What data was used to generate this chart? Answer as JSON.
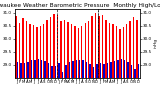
{
  "title": "Milwaukee Weather Barometric Pressure  Monthly High/Low",
  "ylabel_right": "inHg",
  "highs": [
    30.87,
    30.6,
    30.78,
    30.7,
    30.55,
    30.52,
    30.45,
    30.5,
    30.58,
    30.72,
    30.82,
    30.95,
    30.9,
    30.7,
    30.72,
    30.65,
    30.58,
    30.48,
    30.42,
    30.48,
    30.6,
    30.68,
    30.88,
    30.98,
    30.88,
    30.92,
    30.72,
    30.62,
    30.55,
    30.5,
    30.38,
    30.45,
    30.58,
    30.7,
    30.85,
    30.72
  ],
  "lows": [
    29.1,
    29.05,
    29.08,
    29.12,
    29.18,
    29.2,
    29.22,
    29.18,
    29.15,
    29.05,
    28.95,
    28.95,
    29.05,
    28.72,
    29.0,
    29.1,
    29.15,
    29.18,
    29.2,
    29.2,
    29.12,
    29.02,
    28.92,
    29.02,
    29.05,
    29.02,
    29.05,
    29.12,
    29.15,
    29.2,
    29.22,
    29.18,
    29.12,
    29.0,
    28.85,
    29.02
  ],
  "months": [
    "J",
    "F",
    "M",
    "A",
    "M",
    "J",
    "J",
    "A",
    "S",
    "O",
    "N",
    "D",
    "J",
    "F",
    "M",
    "A",
    "M",
    "J",
    "J",
    "A",
    "S",
    "O",
    "N",
    "D",
    "J",
    "F",
    "M",
    "A",
    "M",
    "J",
    "J",
    "A",
    "S",
    "O",
    "N",
    "D"
  ],
  "ylim_low": 28.5,
  "ylim_high": 31.15,
  "yticks": [
    29.0,
    29.5,
    30.0,
    30.5,
    31.0
  ],
  "high_color": "#FF0000",
  "low_color": "#0000CC",
  "bg_color": "#FFFFFF",
  "title_fontsize": 4.2,
  "bar_width": 0.42,
  "figsize": [
    1.6,
    0.87
  ],
  "dpi": 100
}
